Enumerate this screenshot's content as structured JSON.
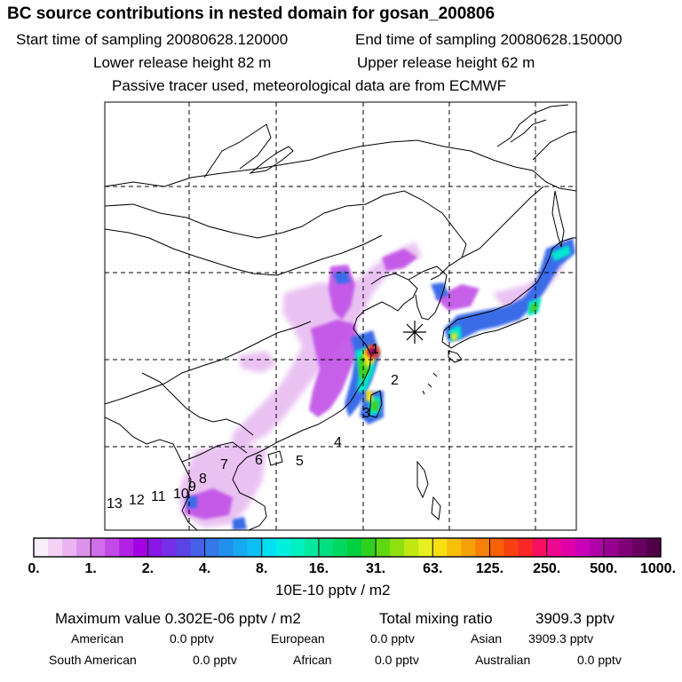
{
  "header": {
    "title": "BC  source contributions in nested domain for gosan_200806",
    "start_label": "Start time of sampling 20080628.120000",
    "end_label": "End time of sampling 20080628.150000",
    "lower_release": "Lower release height   82 m",
    "upper_release": "Upper release height   62 m",
    "tracer_note": "Passive tracer used, meteorological data are from ECMWF"
  },
  "chart_data": {
    "type": "heatmap",
    "title": "BC  source contributions in nested domain for gosan_200806",
    "colorbar": {
      "tick_labels": [
        "0.",
        "1.",
        "2.",
        "4.",
        "8.",
        "16.",
        "31.",
        "63.",
        "125.",
        "250.",
        "500.",
        "1000."
      ],
      "unit_label": "10E-10 pptv / m2",
      "colors": [
        "#fbeefb",
        "#f4d2f6",
        "#eab4f2",
        "#dd93ee",
        "#cf6fe9",
        "#c24ae6",
        "#b122e4",
        "#a400e6",
        "#8a16e8",
        "#7330e6",
        "#5a44e6",
        "#4660e8",
        "#3478ea",
        "#2490ee",
        "#18a8f2",
        "#0cc0f6",
        "#00e0f2",
        "#00f0e0",
        "#00f0c0",
        "#00e8a0",
        "#00e080",
        "#00d860",
        "#00d040",
        "#30d020",
        "#60d810",
        "#90e010",
        "#c0e810",
        "#e8f020",
        "#f8e010",
        "#f8c008",
        "#f8a008",
        "#f88008",
        "#f86008",
        "#f84010",
        "#f82828",
        "#f81060",
        "#f00890",
        "#e000a8",
        "#c800b8",
        "#b000a8",
        "#980090",
        "#800078",
        "#680060",
        "#500048"
      ]
    },
    "source_regions": [
      "1",
      "2",
      "3",
      "4",
      "5",
      "6",
      "7",
      "8",
      "9",
      "10",
      "11",
      "12",
      "13"
    ],
    "receptor": "gosan",
    "maximum_value": "0.302E-06 pptv / m2",
    "total_mixing_ratio": "3909.3 pptv"
  },
  "summary": {
    "max_label": "Maximum value  0.302E-06 pptv / m2",
    "total_label": "Total mixing ratio",
    "total_value": "3909.3 pptv",
    "american_label": "American",
    "american_value": "0.0 pptv",
    "european_label": "European",
    "european_value": "0.0 pptv",
    "asian_label": "Asian",
    "asian_value": "3909.3 pptv",
    "south_american_label": "South American",
    "south_american_value": "0.0 pptv",
    "african_label": "African",
    "african_value": "0.0 pptv",
    "australian_label": "Australian",
    "australian_value": "0.0 pptv"
  }
}
